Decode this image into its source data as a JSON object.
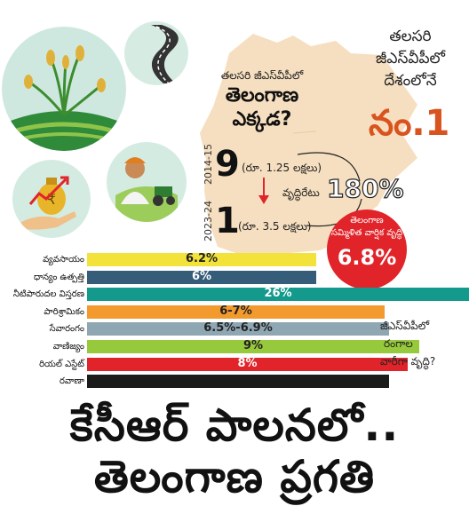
{
  "question": {
    "line1": "తలసరి జీఎస్‌వీపీలో",
    "line2": "తెలంగాణ",
    "line3": "ఎక్కడ?"
  },
  "title_right": {
    "line1": "తలసరి",
    "line2": "జీఎస్‌వీపీలో",
    "line3": "దేశంలోనే",
    "line4": "నం.1"
  },
  "rank": {
    "period_top": "2014-15",
    "period_bottom": "2023-24",
    "rank_top": "9",
    "rank_top_amount": "(రూ. 1.25 లక్షలు)",
    "rank_bottom": "1",
    "rank_bottom_amount": "(రూ. 3.5 లక్షలు)",
    "growth_label": "వృద్ధిరేటు",
    "growth_value": "180%"
  },
  "cagr": {
    "line1": "తెలంగాణ",
    "line2": "సమ్మిళిత వార్షిక వృద్ధి",
    "value": "6.8%"
  },
  "side_question": {
    "line1": "జీఎస్‌వీపీలో",
    "line2": "రంగాల",
    "line3": "వారీగా వృద్ధి?"
  },
  "headline": {
    "line1": "కేసీఆర్ పాలనలో..",
    "line2": "తెలంగాణ ప్రగతి"
  },
  "colors": {
    "orange": "#d9531e",
    "red": "#e0242a",
    "map": "#f6dfc0"
  },
  "icons": [
    "rice-plant-icon",
    "road-icon",
    "money-growth-icon",
    "farmer-tractor-icon",
    "down-arrow-icon"
  ],
  "chart_data": {
    "type": "bar",
    "orientation": "horizontal",
    "categories": [
      "వ్యవసాయం",
      "ధాన్యం ఉత్పత్తి",
      "నీటిపారుదల విస్తరణ",
      "పారిశ్రామికం",
      "సేవారంగం",
      "వాణిజ్యం",
      "రియల్ ఎస్టేట్",
      "రవాణా"
    ],
    "values": [
      6.2,
      6,
      26,
      6.5,
      6.7,
      9,
      8,
      null
    ],
    "value_labels": [
      "6.2%",
      "6%",
      "26%",
      "6-7%",
      "6.5%-6.9%",
      "9%",
      "8%",
      ""
    ],
    "bar_colors": [
      "#f2e23a",
      "#355c78",
      "#139a8c",
      "#f29a2e",
      "#8fa6b3",
      "#97c93c",
      "#e0242a",
      "#1b1b1b"
    ],
    "label_colors": [
      "#222222",
      "#ffffff",
      "#ffffff",
      "#222222",
      "#222222",
      "#222222",
      "#ffffff",
      "#ffffff"
    ],
    "bar_end_fractions": [
      0.6,
      0.6,
      1.0,
      0.78,
      0.79,
      0.87,
      0.84,
      0.79
    ]
  }
}
